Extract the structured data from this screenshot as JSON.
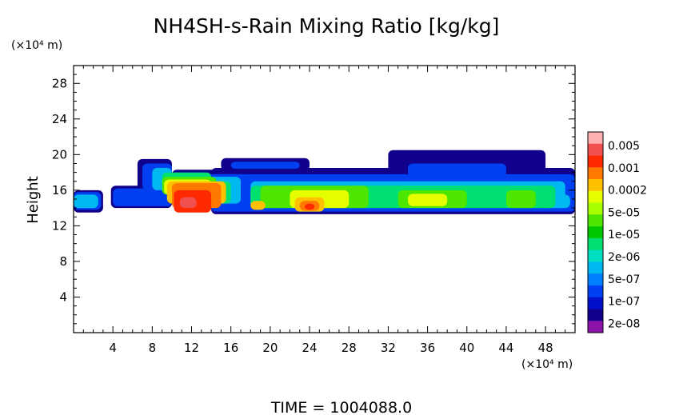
{
  "chart_data": {
    "type": "heatmap",
    "title": "NH4SH-s-Rain Mixing Ratio [kg/kg]",
    "ylabel": "Height",
    "xunit": "(×10⁴ m)",
    "yunit": "(×10⁴ m)",
    "xlim": [
      0,
      51
    ],
    "ylim": [
      0,
      30
    ],
    "xticks": [
      4,
      8,
      12,
      16,
      20,
      24,
      28,
      32,
      36,
      40,
      44,
      48
    ],
    "yticks": [
      4,
      8,
      12,
      16,
      20,
      24,
      28
    ],
    "footer": "TIME  =  1004088.0",
    "colorbar": {
      "labels": [
        "0.005",
        "0.001",
        "0.0002",
        "5e-05",
        "1e-05",
        "2e-06",
        "5e-07",
        "1e-07",
        "2e-08"
      ],
      "colors": [
        "#ffb0b0",
        "#f05050",
        "#ff2a00",
        "#ff7800",
        "#ffc000",
        "#e6ff00",
        "#a8ff00",
        "#4ce600",
        "#00c800",
        "#00e070",
        "#00e0c0",
        "#00b8f0",
        "#0080ff",
        "#0040f0",
        "#0010c8",
        "#10008c",
        "#8c14aa"
      ]
    },
    "levels": [
      {
        "color": "#10008c",
        "cells": [
          [
            0,
            13.5,
            3,
            16
          ],
          [
            3.8,
            14,
            10,
            16.5
          ],
          [
            6.5,
            16,
            10,
            19.5
          ],
          [
            10,
            14,
            19,
            18.3
          ],
          [
            15,
            18.2,
            24,
            19.6
          ],
          [
            14,
            13.3,
            52,
            18.5
          ],
          [
            32,
            17.5,
            48,
            20.5
          ],
          [
            48,
            13.5,
            51,
            16
          ]
        ]
      },
      {
        "color": "#0040f0",
        "cells": [
          [
            0,
            13.8,
            2.8,
            15.8
          ],
          [
            4,
            14.2,
            10,
            16.2
          ],
          [
            7,
            16,
            10,
            19
          ],
          [
            10,
            14.2,
            18,
            17.8
          ],
          [
            16,
            18.4,
            23,
            19.2
          ],
          [
            14,
            13.6,
            51,
            17.8
          ],
          [
            34,
            17.5,
            44,
            19
          ],
          [
            48,
            13.8,
            51,
            15.8
          ]
        ]
      },
      {
        "color": "#00b8f0",
        "cells": [
          [
            0,
            14,
            2.5,
            15.5
          ],
          [
            8,
            16,
            10,
            18.5
          ],
          [
            10,
            14.5,
            17,
            17.5
          ],
          [
            18,
            14,
            50,
            17
          ],
          [
            48,
            14,
            50.5,
            15.5
          ]
        ]
      },
      {
        "color": "#00e070",
        "cells": [
          [
            9,
            16,
            14,
            18
          ],
          [
            10,
            14.5,
            16,
            17
          ],
          [
            18,
            14,
            49,
            16.5
          ]
        ]
      },
      {
        "color": "#4ce600",
        "cells": [
          [
            9,
            15.5,
            14.5,
            17.5
          ],
          [
            19,
            14,
            30,
            16.5
          ],
          [
            33,
            14,
            40,
            16
          ],
          [
            44,
            14,
            47,
            16
          ]
        ]
      },
      {
        "color": "#e6ff00",
        "cells": [
          [
            9.2,
            15.5,
            14,
            17.2
          ],
          [
            22,
            14,
            28,
            16
          ],
          [
            34,
            14.2,
            38,
            15.6
          ]
        ]
      },
      {
        "color": "#ffc000",
        "cells": [
          [
            9.5,
            14.5,
            15.5,
            17
          ],
          [
            18,
            13.8,
            19.5,
            14.8
          ],
          [
            22.5,
            13.6,
            25.5,
            15.2
          ]
        ]
      },
      {
        "color": "#ff7800",
        "cells": [
          [
            10,
            14,
            15,
            16.8
          ],
          [
            23,
            13.7,
            25,
            14.8
          ]
        ]
      },
      {
        "color": "#ff2a00",
        "cells": [
          [
            10.2,
            13.5,
            14,
            16
          ],
          [
            23.5,
            13.8,
            24.5,
            14.5
          ]
        ]
      },
      {
        "color": "#f05050",
        "cells": [
          [
            10.8,
            14,
            12.5,
            15.2
          ]
        ]
      }
    ]
  }
}
